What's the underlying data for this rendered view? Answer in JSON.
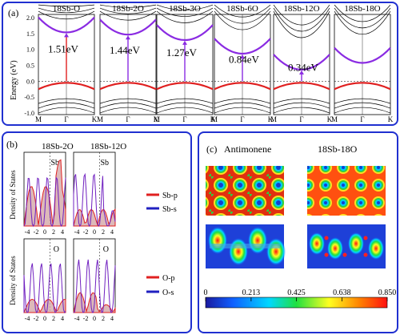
{
  "panel_a": {
    "label": "(a)",
    "ylabel": "Energy (eV)",
    "yticks": [
      "2.0",
      "1.5",
      "1.0",
      "0.5",
      "0.0",
      "-0.5",
      "-1.0"
    ],
    "kpoints": [
      "M",
      "Γ",
      "K"
    ],
    "subplots": [
      {
        "title": "18Sb-O",
        "gap": "1.51eV",
        "gap_value": 1.51
      },
      {
        "title": "18Sb-2O",
        "gap": "1.44eV",
        "gap_value": 1.44
      },
      {
        "title": "18Sb-3O",
        "gap": "1.27eV",
        "gap_value": 1.27
      },
      {
        "title": "18Sb-6O",
        "gap": "0.84eV",
        "gap_value": 0.84
      },
      {
        "title": "18Sb-12O",
        "gap": "0.34eV",
        "gap_value": 0.34
      },
      {
        "title": "18Sb-18O",
        "gap": "",
        "gap_value": 0
      }
    ]
  },
  "panel_b": {
    "label": "(b)",
    "ylabel": "Density of States",
    "col_titles": [
      "18Sb-2O",
      "18Sb-12O"
    ],
    "row_tags": [
      "Sb",
      "O"
    ],
    "xticks": [
      "-4",
      "-2",
      "0",
      "2",
      "4"
    ],
    "legend_top": [
      {
        "name": "Sb-p",
        "color": "#e02020"
      },
      {
        "name": "Sb-s",
        "color": "#2020c0"
      }
    ],
    "legend_bottom": [
      {
        "name": "O-p",
        "color": "#e02020"
      },
      {
        "name": "O-s",
        "color": "#2020c0"
      }
    ]
  },
  "panel_c": {
    "label": "(c)",
    "titles": [
      "Antimonene",
      "18Sb-18O"
    ],
    "colorbar_ticks": [
      "0",
      "0.213",
      "0.425",
      "0.638",
      "0.850"
    ],
    "colorbar_range": [
      0,
      0.85
    ]
  },
  "colors": {
    "frame": "#2030d0",
    "conduction": "#8a2be2",
    "valence": "#e02020",
    "bands": "#000000"
  }
}
